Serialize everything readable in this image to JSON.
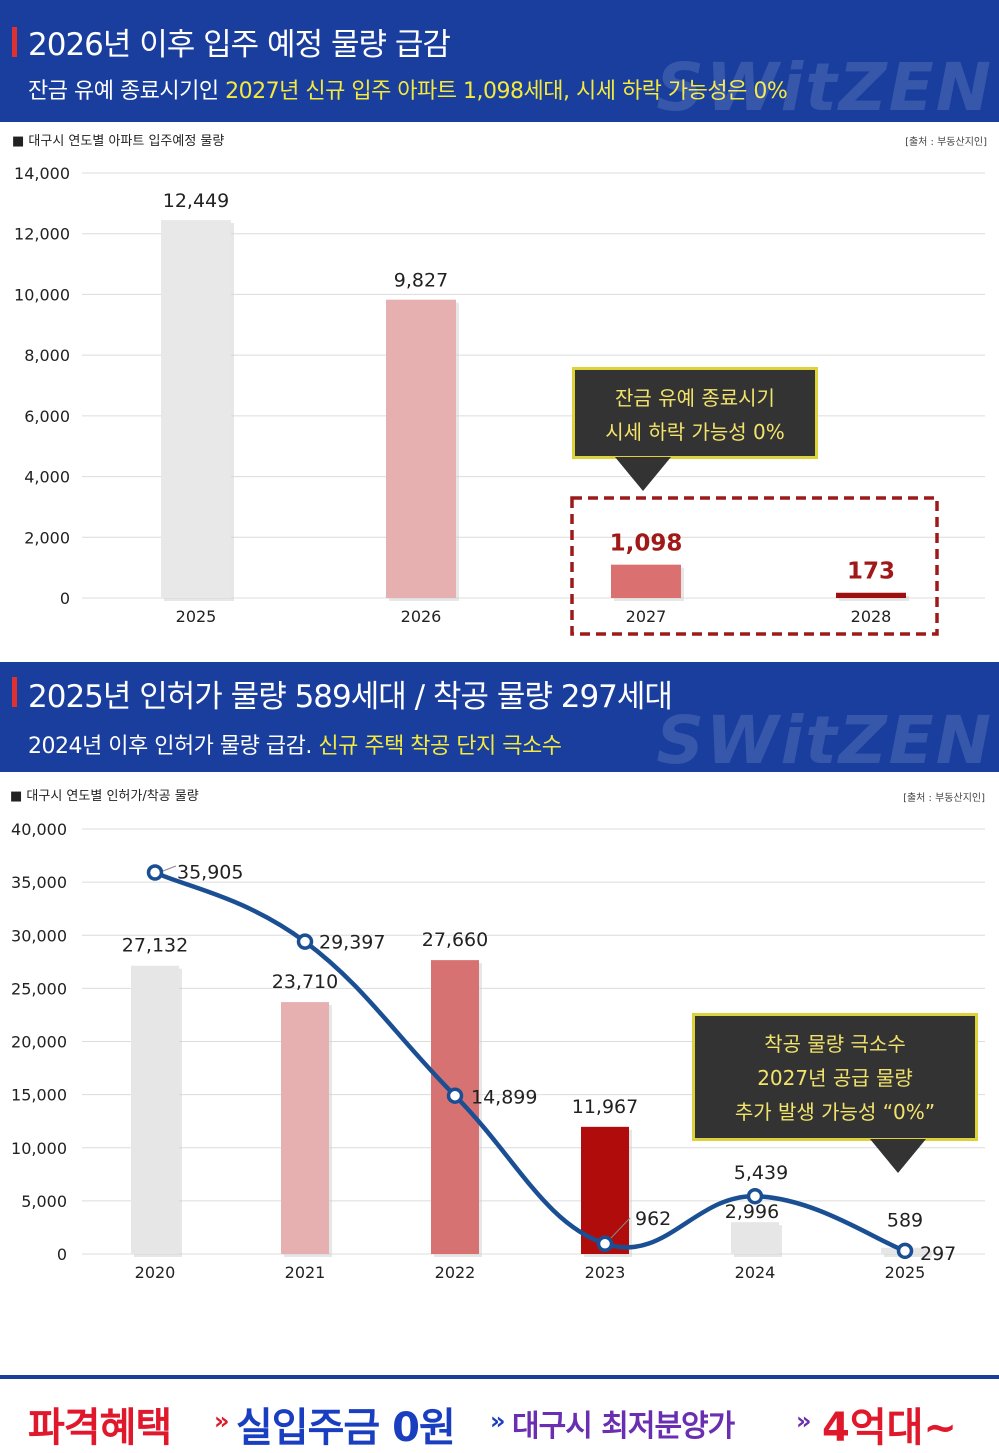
{
  "section1": {
    "title": "2026년 이후 입주 예정 물량 급감",
    "subtitle_prefix": "잔금 유예 종료시기인 ",
    "subtitle_highlight": "2027년 신규 입주 아파트 1,098세대, 시세 하락 가능성은 0%",
    "watermark": "SWitZEN",
    "chart_heading": "■ 대구시 연도별 아파트 입주예정 물량",
    "source": "[출처 : 부동산지인]",
    "callout_lines": [
      "잔금 유예 종료시기",
      "시세 하락 가능성 0%"
    ]
  },
  "section2": {
    "title": "2025년 인허가 물량 589세대 / 착공 물량 297세대",
    "subtitle_prefix": "2024년 이후 인허가 물량 급감. ",
    "subtitle_highlight": "신규 주택 착공 단지 극소수",
    "watermark": "SWitZEN",
    "chart_heading": "■ 대구시 연도별 인허가/착공 물량",
    "source": "[출처 : 부동산지인]",
    "callout_lines": [
      "착공 물량 극소수",
      "2027년 공급 물량",
      "추가 발생 가능성 “0%”"
    ]
  },
  "footer": {
    "part1": "파격혜택",
    "sep1": "»",
    "part2": "실입주금 0원",
    "sep2": "»",
    "part3": "대구시 최저분양가",
    "sep3": "»",
    "part4": "4억대~"
  },
  "chart_data": [
    {
      "type": "bar",
      "categories": [
        "2025",
        "2026",
        "2027",
        "2028"
      ],
      "values": [
        12449,
        9827,
        1098,
        173
      ],
      "value_labels": [
        "12,449",
        "9,827",
        "1,098",
        "173"
      ],
      "colors": [
        "#e8e8e8",
        "#e6b0b0",
        "#da7070",
        "#9e1010"
      ],
      "label_colors": [
        "#222222",
        "#222222",
        "#a01818",
        "#a01818"
      ],
      "yticks": [
        "0",
        "2,000",
        "4,000",
        "6,000",
        "8,000",
        "10,000",
        "12,000",
        "14,000"
      ],
      "ylim": [
        0,
        14000
      ],
      "grid": true
    },
    {
      "type": "bar+line",
      "categories": [
        "2020",
        "2021",
        "2022",
        "2023",
        "2024",
        "2025"
      ],
      "bar_values": [
        27132,
        23710,
        27660,
        11967,
        2996,
        589
      ],
      "bar_labels": [
        "27,132",
        "23,710",
        "27,660",
        "11,967",
        "2,996",
        "589"
      ],
      "bar_colors": [
        "#e6e6e6",
        "#e6b0b0",
        "#d77272",
        "#b10c0c",
        "#e6e6e6",
        "#e6e6e6"
      ],
      "line_values": [
        35905,
        29397,
        14899,
        962,
        5439,
        297
      ],
      "line_labels": [
        "35,905",
        "29,397",
        "14,899",
        "962",
        "5,439",
        "297"
      ],
      "line_color": "#1a4f94",
      "yticks": [
        "0",
        "5,000",
        "10,000",
        "15,000",
        "20,000",
        "25,000",
        "30,000",
        "35,000",
        "40,000"
      ],
      "ylim": [
        0,
        40000
      ],
      "grid": true
    }
  ]
}
